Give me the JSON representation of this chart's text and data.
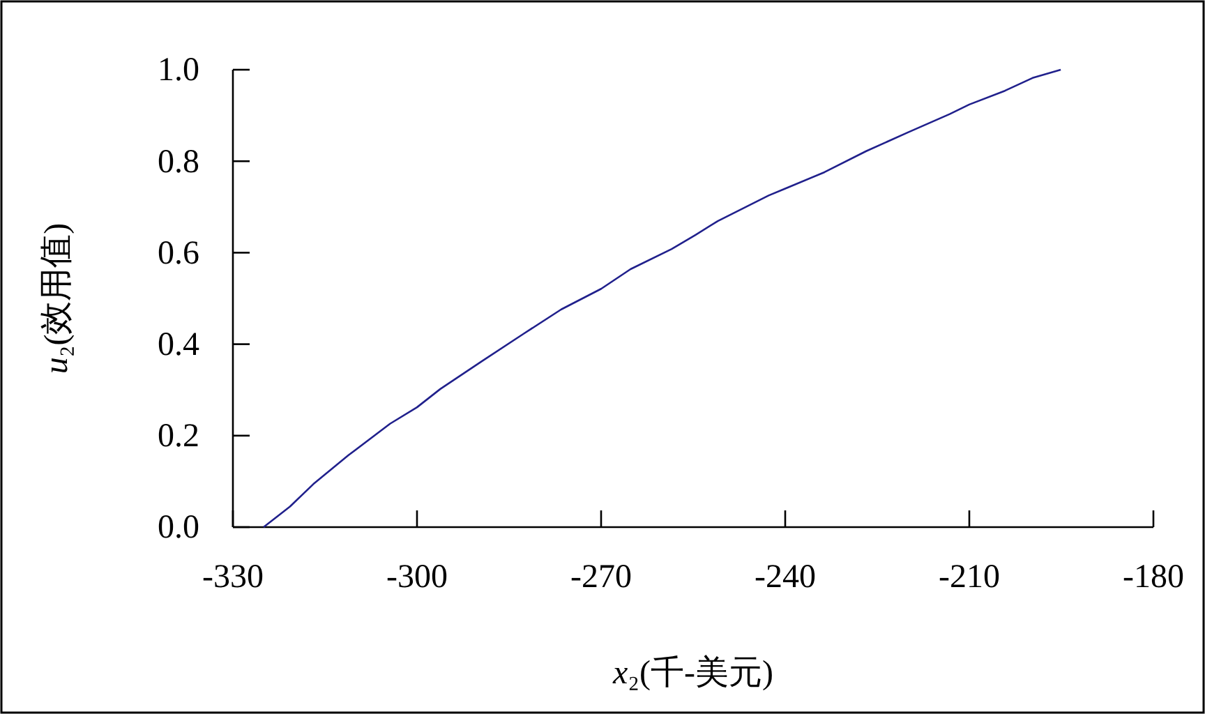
{
  "chart_data": {
    "type": "line",
    "xlabel": "x₂(千-美元)",
    "ylabel": "u₂(效用值)",
    "xlim": [
      -330,
      -180
    ],
    "xticks": [
      -330,
      -300,
      -270,
      -240,
      -210,
      -180
    ],
    "ylim": [
      0,
      1
    ],
    "yticks": [
      {
        "value": 0,
        "label": "0.0"
      },
      {
        "value": 0.2,
        "label": "0.2"
      },
      {
        "value": 0.4,
        "label": "0.4"
      },
      {
        "value": 0.6,
        "label": "0.6"
      },
      {
        "value": 0.8,
        "label": "0.8"
      },
      {
        "value": 1,
        "label": "1.0"
      }
    ],
    "grid": false,
    "marker": "none",
    "line_style": "solid",
    "series": [
      {
        "color": "#20208c",
        "x": [
          -325.0,
          -320.7,
          -316.9,
          -311.2,
          -304.4,
          -300,
          -296.2,
          -289.4,
          -282.6,
          -276.5,
          -270,
          -265.2,
          -258.5,
          -254.6,
          -251.0,
          -242.7,
          -240,
          -233.6,
          -226.8,
          -220.0,
          -213.2,
          -210,
          -204.2,
          -199.7,
          -195.1
        ],
        "values": [
          0,
          0.045,
          0.094,
          0.157,
          0.226,
          0.262,
          0.302,
          0.363,
          0.423,
          0.476,
          0.521,
          0.564,
          0.608,
          0.639,
          0.669,
          0.725,
          0.74,
          0.776,
          0.822,
          0.863,
          0.903,
          0.924,
          0.954,
          0.982,
          1.0
        ]
      }
    ]
  }
}
